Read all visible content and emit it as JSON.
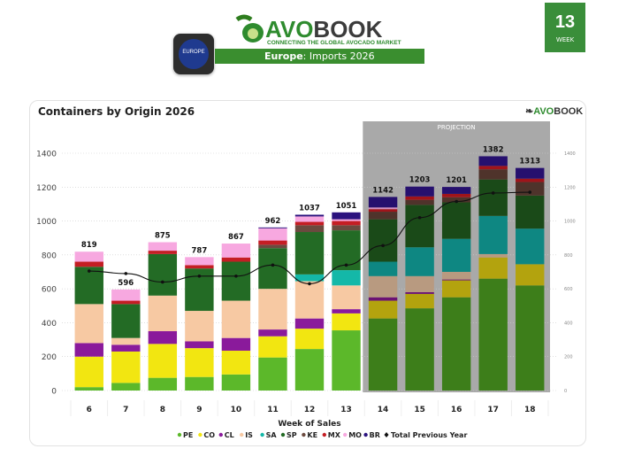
{
  "header": {
    "brand_prefix": "AVO",
    "brand_suffix": "BOOK",
    "tagline": "CONNECTING THE GLOBAL AVOCADO MARKET",
    "region_badge": "EUROPE",
    "title_region": "Europe",
    "title_rest": ": Imports 2026",
    "week_number": "13",
    "week_label": "WEEK"
  },
  "chart_data": {
    "type": "bar",
    "stacked": true,
    "title": "Containers by Origin 2026",
    "xlabel": "Week of Sales",
    "ylabel": "",
    "ylim": [
      0,
      1400
    ],
    "yticks": [
      0,
      200,
      400,
      600,
      800,
      1000,
      1200,
      1400
    ],
    "secondary_yticks": [
      0,
      200,
      400,
      600,
      800,
      1000,
      1200,
      1400
    ],
    "grid": true,
    "legend_position": "bottom",
    "projection_label": "PROJECTION",
    "projection_weeks": [
      "14",
      "15",
      "16",
      "17",
      "18"
    ],
    "categories": [
      "6",
      "7",
      "8",
      "9",
      "10",
      "11",
      "12",
      "13",
      "14",
      "15",
      "16",
      "17",
      "18"
    ],
    "totals": [
      819,
      596,
      875,
      787,
      867,
      962,
      1037,
      1051,
      1142,
      1203,
      1201,
      1382,
      1313
    ],
    "series": [
      {
        "name": "PE",
        "color": "#5cb82a",
        "projection_color": "#3d7e1a",
        "values": [
          20,
          45,
          75,
          80,
          95,
          195,
          245,
          355,
          425,
          485,
          550,
          660,
          620
        ]
      },
      {
        "name": "CO",
        "color": "#f2e611",
        "projection_color": "#b3a30e",
        "values": [
          180,
          185,
          200,
          170,
          140,
          125,
          120,
          100,
          105,
          85,
          100,
          125,
          125
        ]
      },
      {
        "name": "CL",
        "color": "#8a1a9b",
        "projection_color": "#6b1273",
        "values": [
          80,
          40,
          75,
          40,
          75,
          40,
          60,
          25,
          20,
          10,
          5,
          0,
          0
        ]
      },
      {
        "name": "IS",
        "color": "#f7c9a3",
        "projection_color": "#b89a80",
        "values": [
          230,
          40,
          210,
          180,
          220,
          240,
          220,
          140,
          125,
          95,
          45,
          20,
          0
        ]
      },
      {
        "name": "SA",
        "color": "#14b8a8",
        "projection_color": "#0e8782",
        "values": [
          0,
          0,
          0,
          0,
          0,
          0,
          40,
          90,
          85,
          170,
          195,
          225,
          210
        ]
      },
      {
        "name": "SP",
        "color": "#236b25",
        "projection_color": "#1a4a18",
        "values": [
          220,
          200,
          245,
          250,
          230,
          240,
          250,
          235,
          250,
          250,
          215,
          215,
          195
        ]
      },
      {
        "name": "KE",
        "color": "#6b4a3f",
        "projection_color": "#4f332b",
        "values": [
          0,
          0,
          0,
          0,
          0,
          20,
          40,
          30,
          45,
          30,
          30,
          60,
          80
        ]
      },
      {
        "name": "MX",
        "color": "#c41e24",
        "projection_color": "#a0141a",
        "values": [
          30,
          20,
          20,
          20,
          25,
          25,
          20,
          25,
          15,
          20,
          20,
          20,
          20
        ]
      },
      {
        "name": "MO",
        "color": "#f7a8e0",
        "projection_color": "#d48fc0",
        "values": [
          59,
          66,
          50,
          47,
          82,
          72,
          32,
          10,
          10,
          0,
          0,
          0,
          0
        ]
      },
      {
        "name": "BR",
        "color": "#2b127e",
        "projection_color": "#26106e",
        "values": [
          0,
          0,
          0,
          0,
          0,
          5,
          10,
          41,
          62,
          58,
          41,
          57,
          63
        ]
      }
    ],
    "line_series": {
      "name": "Total Previous Year",
      "color": "#111111",
      "values": [
        705,
        690,
        640,
        675,
        675,
        740,
        630,
        740,
        855,
        1020,
        1115,
        1165,
        1170
      ]
    }
  }
}
